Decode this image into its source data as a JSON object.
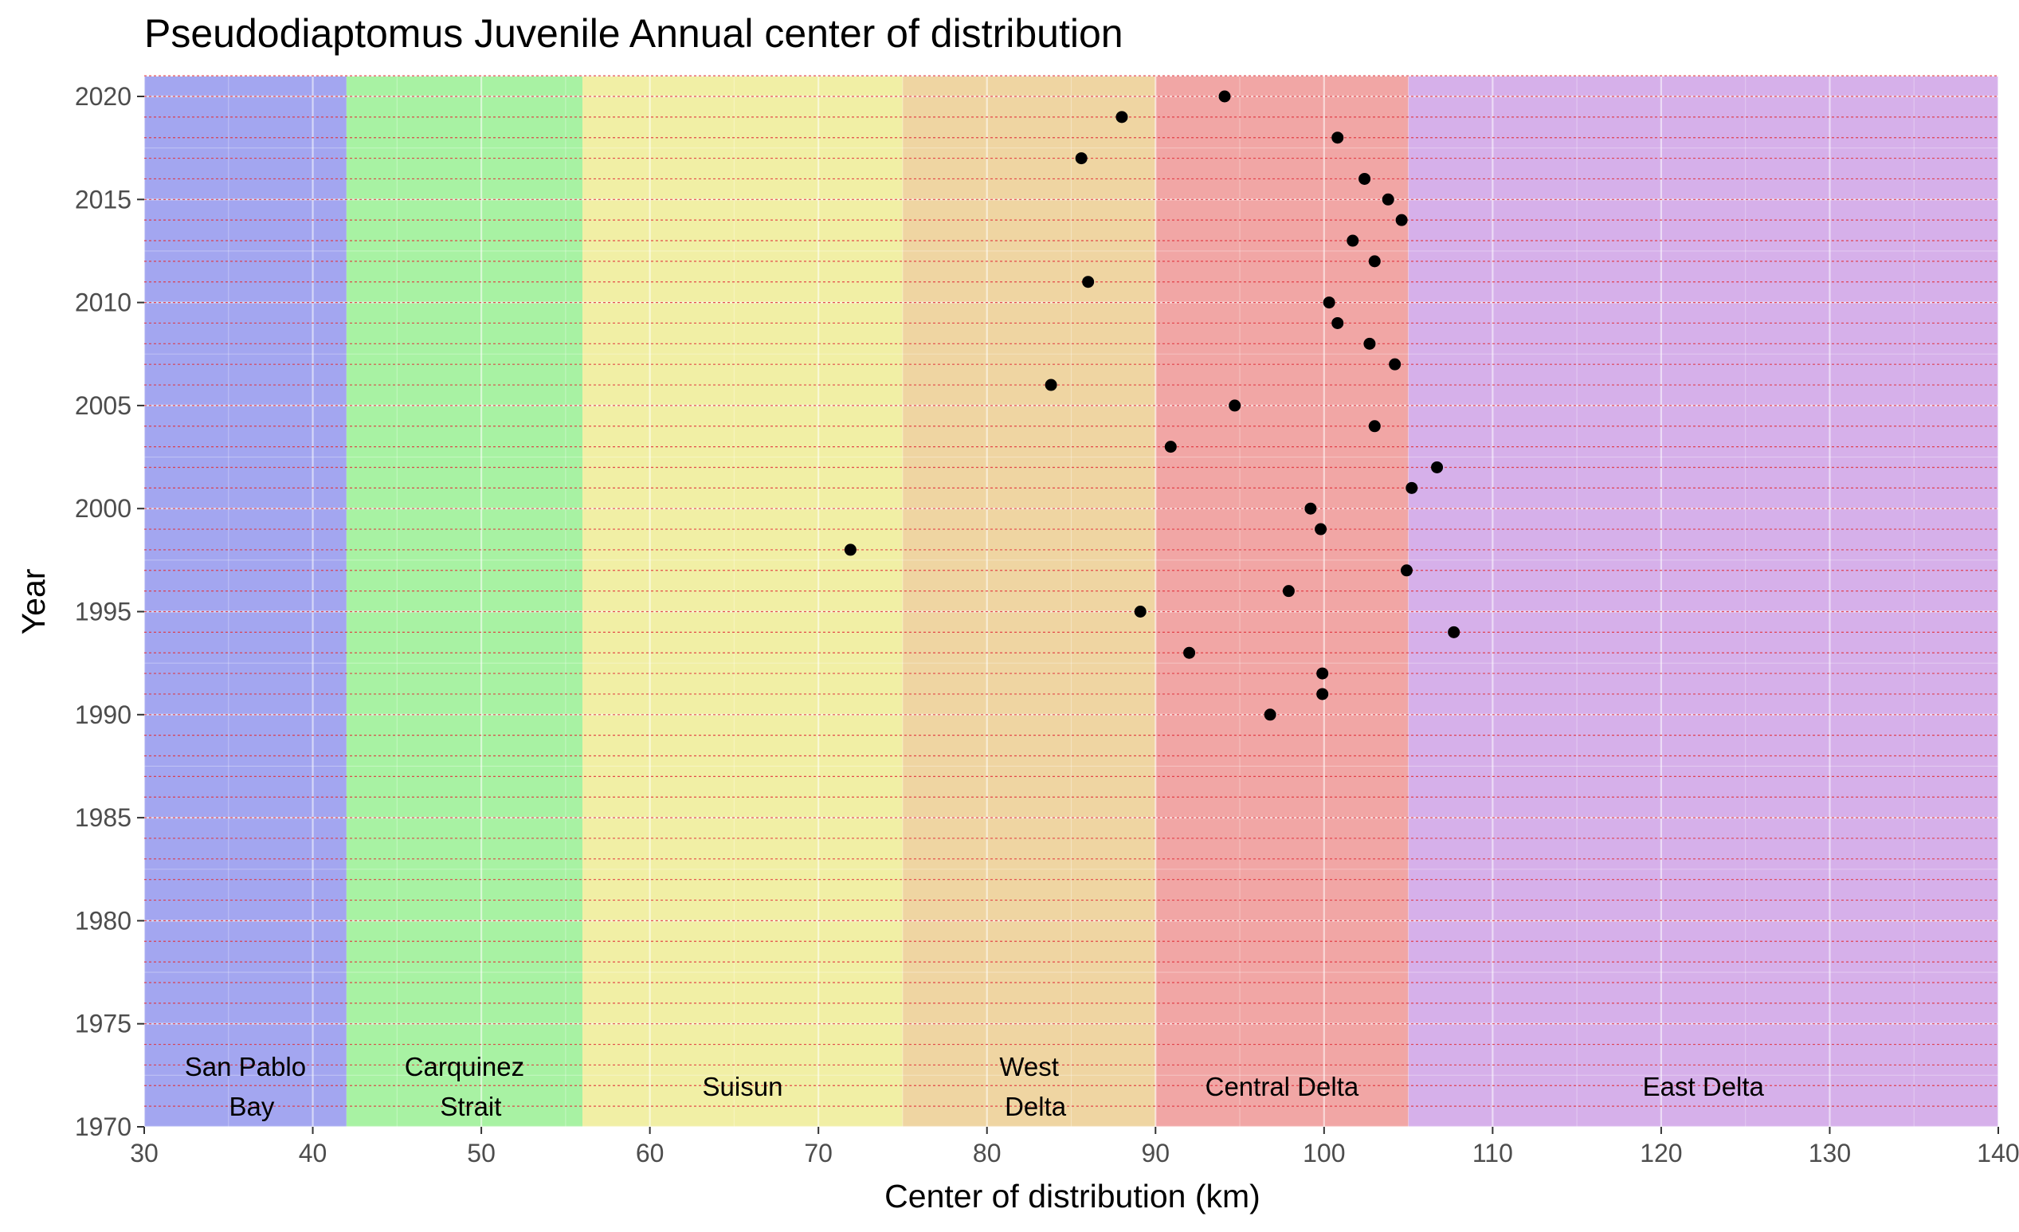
{
  "chart_data": {
    "type": "scatter",
    "title": "Pseudodiaptomus Juvenile Annual center of distribution",
    "xlabel": "Center of distribution (km)",
    "ylabel": "Year",
    "xlim": [
      30,
      140
    ],
    "ylim": [
      1970,
      2021
    ],
    "x_ticks": [
      30,
      40,
      50,
      60,
      70,
      80,
      90,
      100,
      110,
      120,
      130,
      140
    ],
    "y_ticks": [
      1970,
      1975,
      1980,
      1985,
      1990,
      1995,
      2000,
      2005,
      2010,
      2015,
      2020
    ],
    "grid": true,
    "year_reference_lines": "dashed red line at every year 1971-2021",
    "regions": [
      {
        "name_lines": [
          "San Pablo",
          "Bay"
        ],
        "xmin": 30,
        "xmax": 42,
        "color": "#a3a6f0"
      },
      {
        "name_lines": [
          "Carquinez",
          "Strait"
        ],
        "xmin": 42,
        "xmax": 56,
        "color": "#a8f2a3"
      },
      {
        "name_lines": [
          "Suisun"
        ],
        "xmin": 56,
        "xmax": 75,
        "color": "#f1efa5"
      },
      {
        "name_lines": [
          "West",
          "Delta"
        ],
        "xmin": 75,
        "xmax": 90,
        "color": "#efd5a2"
      },
      {
        "name_lines": [
          "Central Delta"
        ],
        "xmin": 90,
        "xmax": 105,
        "color": "#f1a6a5"
      },
      {
        "name_lines": [
          "East Delta"
        ],
        "xmin": 105,
        "xmax": 140,
        "color": "#d6b0ea"
      }
    ],
    "points": [
      {
        "year": 1990,
        "x": 96.8
      },
      {
        "year": 1991,
        "x": 99.9
      },
      {
        "year": 1992,
        "x": 99.9
      },
      {
        "year": 1993,
        "x": 92.0
      },
      {
        "year": 1994,
        "x": 107.7
      },
      {
        "year": 1995,
        "x": 89.1
      },
      {
        "year": 1996,
        "x": 97.9
      },
      {
        "year": 1997,
        "x": 104.9
      },
      {
        "year": 1998,
        "x": 71.9
      },
      {
        "year": 1999,
        "x": 99.8
      },
      {
        "year": 2000,
        "x": 99.2
      },
      {
        "year": 2001,
        "x": 105.2
      },
      {
        "year": 2002,
        "x": 106.7
      },
      {
        "year": 2003,
        "x": 90.9
      },
      {
        "year": 2004,
        "x": 103.0
      },
      {
        "year": 2005,
        "x": 94.7
      },
      {
        "year": 2006,
        "x": 83.8
      },
      {
        "year": 2007,
        "x": 104.2
      },
      {
        "year": 2008,
        "x": 102.7
      },
      {
        "year": 2009,
        "x": 100.8
      },
      {
        "year": 2010,
        "x": 100.3
      },
      {
        "year": 2011,
        "x": 86.0
      },
      {
        "year": 2012,
        "x": 103.0
      },
      {
        "year": 2013,
        "x": 101.7
      },
      {
        "year": 2014,
        "x": 104.6
      },
      {
        "year": 2015,
        "x": 103.8
      },
      {
        "year": 2016,
        "x": 102.4
      },
      {
        "year": 2017,
        "x": 85.6
      },
      {
        "year": 2018,
        "x": 100.8
      },
      {
        "year": 2019,
        "x": 88.0
      },
      {
        "year": 2020,
        "x": 94.1
      }
    ]
  }
}
